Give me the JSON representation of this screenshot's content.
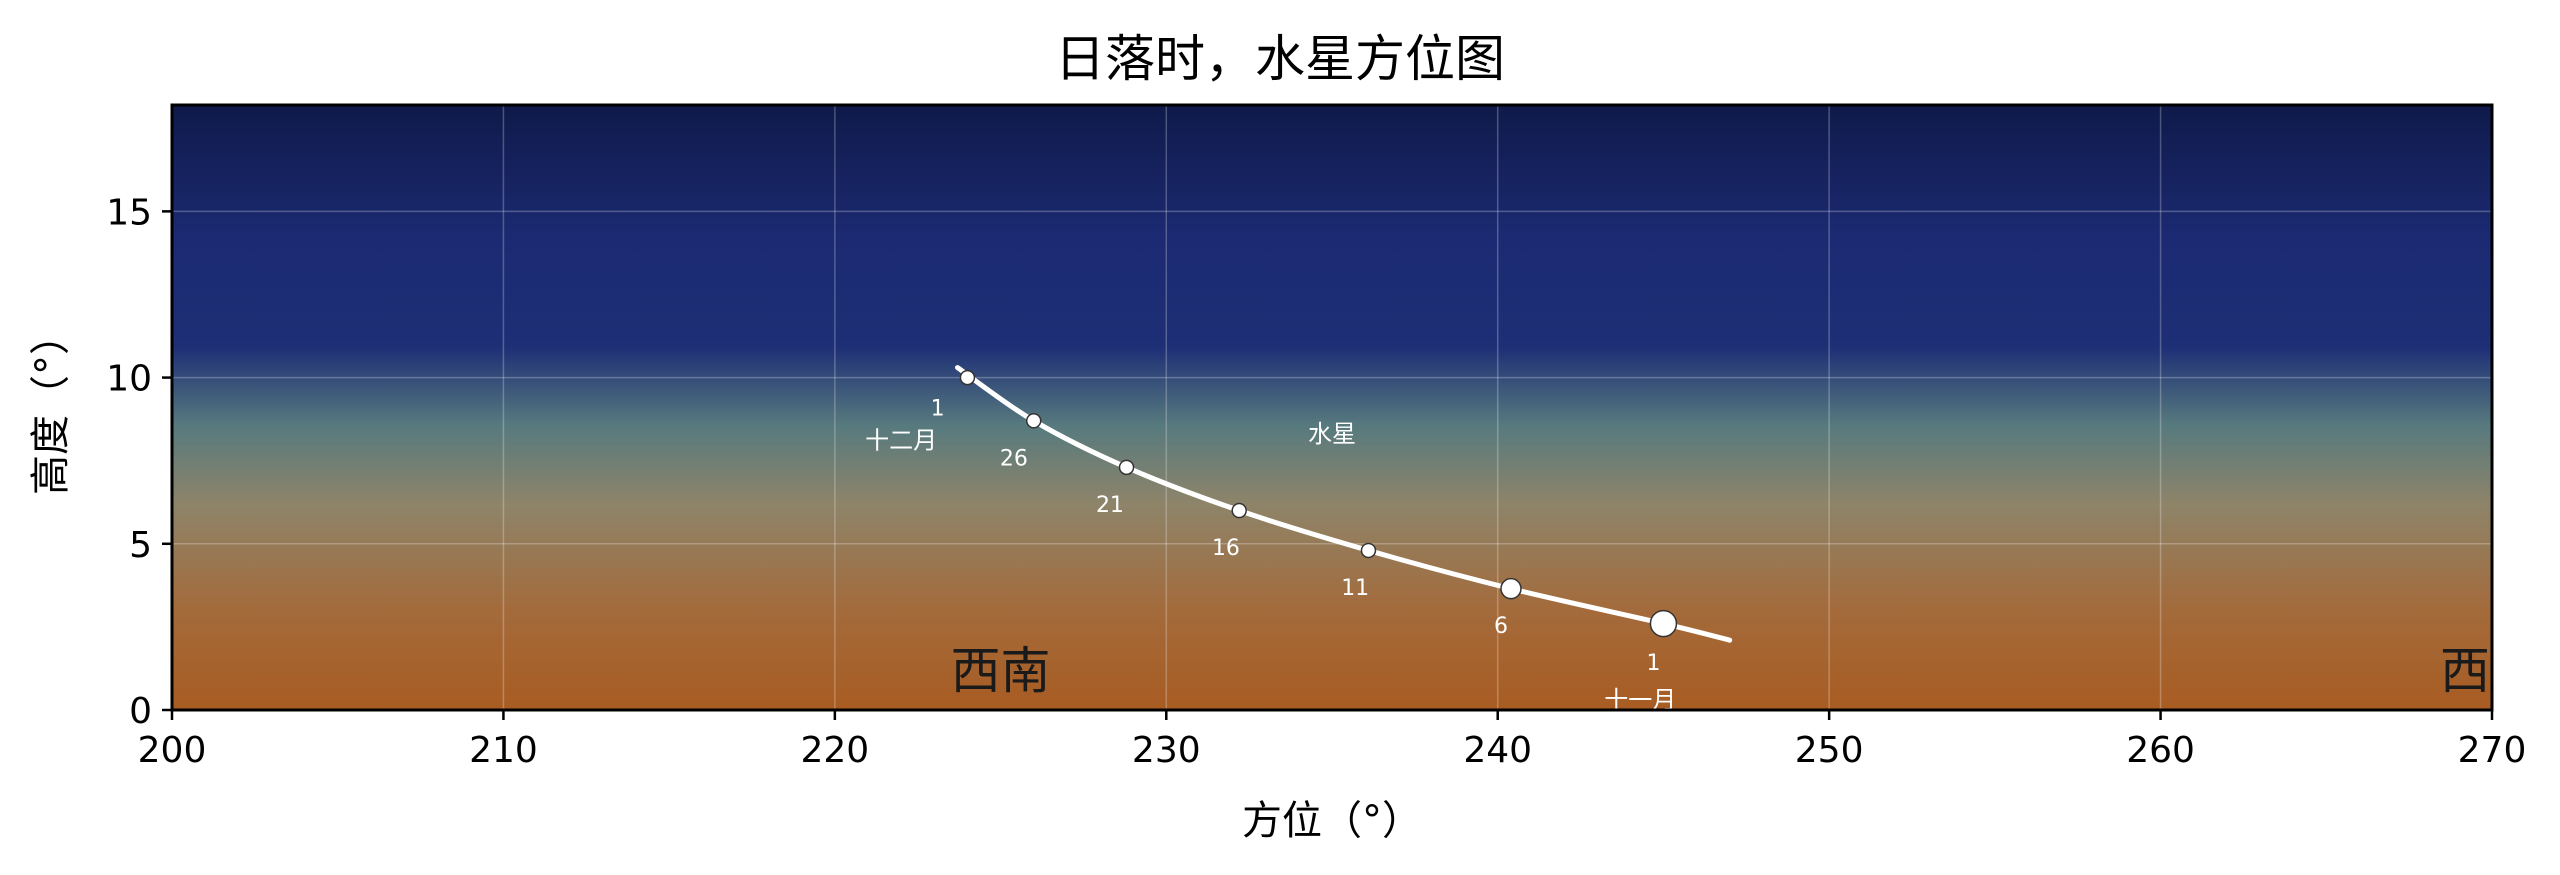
{
  "chart_data": {
    "type": "scatter",
    "title": "日落时，水星方位图",
    "xlabel": "方位（°）",
    "ylabel": "高度（°）",
    "xlim": [
      200,
      270
    ],
    "ylim": [
      0,
      18.2
    ],
    "xticks": [
      "200",
      "210",
      "220",
      "230",
      "240",
      "250",
      "260",
      "270"
    ],
    "yticks": [
      "0",
      "5",
      "10",
      "15"
    ],
    "grid": true,
    "track_label": "水星",
    "track": [
      {
        "x": 223.7,
        "y": 10.3
      },
      {
        "x": 226.0,
        "y": 8.7
      },
      {
        "x": 228.8,
        "y": 7.3
      },
      {
        "x": 232.2,
        "y": 6.0
      },
      {
        "x": 236.1,
        "y": 4.8
      },
      {
        "x": 240.4,
        "y": 3.65
      },
      {
        "x": 245.0,
        "y": 2.6
      },
      {
        "x": 247.0,
        "y": 2.1
      }
    ],
    "points": [
      {
        "label": "1",
        "x": 245.0,
        "y": 2.6,
        "size": "large"
      },
      {
        "label": "6",
        "x": 240.4,
        "y": 3.65,
        "size": "medium"
      },
      {
        "label": "11",
        "x": 236.1,
        "y": 4.8,
        "size": "small"
      },
      {
        "label": "16",
        "x": 232.2,
        "y": 6.0,
        "size": "small"
      },
      {
        "label": "21",
        "x": 228.8,
        "y": 7.3,
        "size": "small"
      },
      {
        "label": "26",
        "x": 226.0,
        "y": 8.7,
        "size": "small"
      },
      {
        "label": "1",
        "x": 224.0,
        "y": 10.0,
        "size": "small"
      }
    ],
    "day_labels": [
      {
        "text": "1",
        "x": 244.7,
        "y": 1.45
      },
      {
        "text": "6",
        "x": 240.1,
        "y": 2.55
      },
      {
        "text": "11",
        "x": 235.7,
        "y": 3.7
      },
      {
        "text": "16",
        "x": 231.8,
        "y": 4.9
      },
      {
        "text": "21",
        "x": 228.3,
        "y": 6.2
      },
      {
        "text": "26",
        "x": 225.4,
        "y": 7.6
      },
      {
        "text": "1",
        "x": 223.1,
        "y": 9.1
      }
    ],
    "month_labels": [
      {
        "text": "十一月",
        "x": 244.3,
        "y": 0.05
      },
      {
        "text": "十二月",
        "x": 222.0,
        "y": 8.1
      }
    ],
    "planet_label_pos": {
      "x": 235.0,
      "y": 8.3
    },
    "compass": [
      {
        "text": "西南",
        "x": 225.0,
        "y": 1.2
      },
      {
        "text": "西",
        "x": 270.0,
        "y": 1.2
      }
    ],
    "sky_gradient": [
      "#0f1a4a",
      "#1b2a72",
      "#1e2f76",
      "#577a7e",
      "#8e8469",
      "#a46a3a",
      "#a85c22"
    ],
    "track_color": "#ffffff"
  }
}
